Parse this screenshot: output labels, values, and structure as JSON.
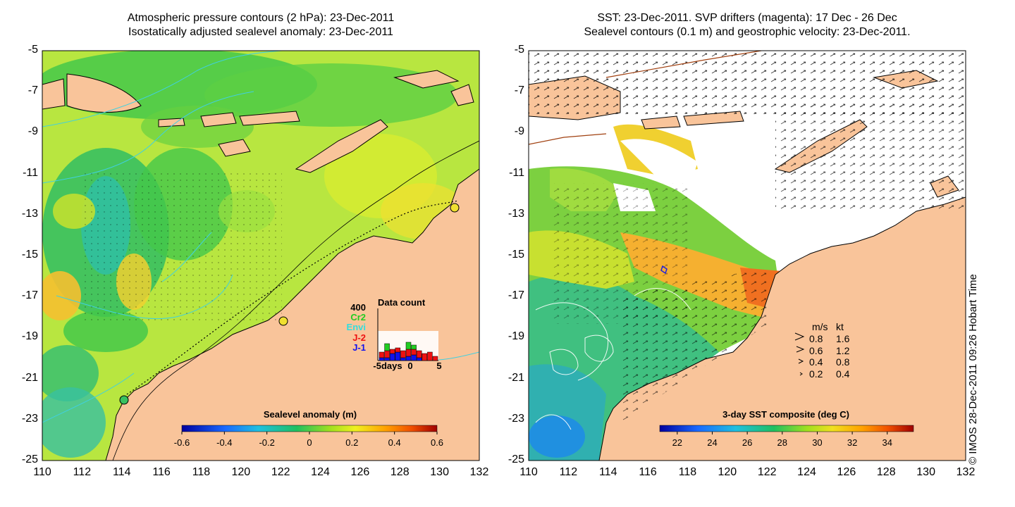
{
  "left_panel": {
    "title_line1": "Atmospheric pressure contours (2 hPa): 23-Dec-2011",
    "title_line2": "Isostatically adjusted sealevel anomaly: 23-Dec-2011",
    "colorbar": {
      "title": "Sealevel anomaly (m)",
      "ticks": [
        "-0.6",
        "-0.4",
        "-0.2",
        "0",
        "0.2",
        "0.4",
        "0.6"
      ],
      "range": [
        -0.6,
        0.6
      ]
    },
    "data_count": {
      "title": "Data count",
      "ymax_label": "400",
      "missions": [
        {
          "name": "Cr2",
          "color": "#22cc22"
        },
        {
          "name": "Envi",
          "color": "#33dddd"
        },
        {
          "name": "J-2",
          "color": "#ee1111"
        },
        {
          "name": "J-1",
          "color": "#1111ee"
        }
      ],
      "xaxis_labels": [
        "-5days",
        "0",
        "5"
      ]
    }
  },
  "right_panel": {
    "title_line1": "SST: 23-Dec-2011. SVP drifters (magenta): 17 Dec - 26 Dec",
    "title_line2": "Sealevel contours (0.1 m) and geostrophic velocity: 23-Dec-2011.",
    "colorbar": {
      "title": "3-day SST composite (deg C)",
      "ticks": [
        "22",
        "24",
        "26",
        "28",
        "30",
        "32",
        "34"
      ],
      "range": [
        21,
        35.5
      ]
    },
    "velocity_legend": {
      "header_ms": "m/s",
      "header_kt": "kt",
      "rows": [
        {
          "ms": "0.8",
          "kt": "1.6"
        },
        {
          "ms": "0.6",
          "kt": "1.2"
        },
        {
          "ms": "0.4",
          "kt": "0.8"
        },
        {
          "ms": "0.2",
          "kt": "0.4"
        }
      ]
    }
  },
  "axes": {
    "lat_ticks": [
      "-5",
      "-7",
      "-9",
      "-11",
      "-13",
      "-15",
      "-17",
      "-19",
      "-21",
      "-23",
      "-25"
    ],
    "lon_ticks": [
      "110",
      "112",
      "114",
      "116",
      "118",
      "120",
      "122",
      "124",
      "126",
      "128",
      "130",
      "132"
    ],
    "lat_range": [
      -25,
      -5
    ],
    "lon_range": [
      110,
      132
    ]
  },
  "credit": "© IMOS 28-Dec-2011 09:26 Hobart Time",
  "colors": {
    "land": "#f9c49a",
    "coast": "#000000",
    "contour": "#40d0e0"
  }
}
